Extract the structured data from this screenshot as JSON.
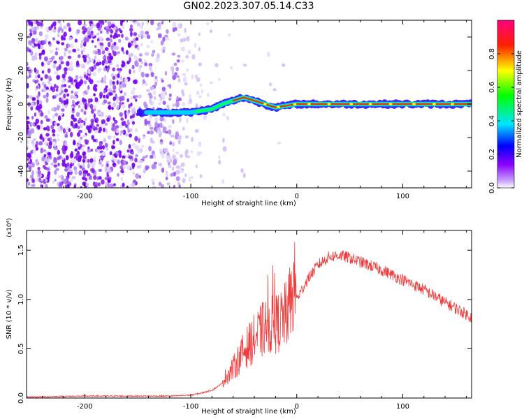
{
  "title": "GN02.2023.307.05.14.C33",
  "colorbar": {
    "label": "Normalized spectral amplitude",
    "ticks": [
      "0.0",
      "0.2",
      "0.4",
      "0.6",
      "0.8"
    ],
    "tick_values": [
      0.0,
      0.2,
      0.4,
      0.6,
      0.8
    ],
    "range": [
      0,
      1
    ],
    "colors": [
      "#ffffff",
      "#8a2be2",
      "#0000ff",
      "#00ffff",
      "#00ff00",
      "#ffff00",
      "#ff0000",
      "#ff00ff"
    ]
  },
  "chart_data": [
    {
      "type": "heatmap",
      "xlabel": "Height of straight line (km)",
      "ylabel": "Frequency (Hz)",
      "xlim": [
        -255,
        165
      ],
      "ylim": [
        -50,
        50
      ],
      "x_ticks": [
        -200,
        -100,
        0,
        100
      ],
      "x_tick_labels": [
        "-200",
        "-100",
        "0",
        "100"
      ],
      "y_ticks": [
        -40,
        -20,
        0,
        20,
        40
      ],
      "y_tick_labels": [
        "-40",
        "-20",
        "0",
        "20",
        "40"
      ],
      "ridge": {
        "x": [
          -145,
          -120,
          -100,
          -80,
          -70,
          -60,
          -50,
          -45,
          -40,
          -30,
          -20,
          -10,
          0,
          50,
          100,
          165
        ],
        "y": [
          -5,
          -5,
          -5,
          -3,
          0,
          2,
          4,
          3,
          2,
          0,
          -2,
          -1,
          0,
          0,
          0,
          0
        ]
      }
    },
    {
      "type": "line",
      "xlabel": "Height of straight line (km)",
      "ylabel": "SNR (10 * v/v)",
      "y_multiplier": "(x10⁴)",
      "xlim": [
        -255,
        165
      ],
      "ylim": [
        0,
        1.7
      ],
      "x_ticks": [
        -200,
        -100,
        0,
        100
      ],
      "x_tick_labels": [
        "-200",
        "-100",
        "0",
        "100"
      ],
      "y_ticks": [
        0.0,
        0.5,
        1.0,
        1.5
      ],
      "y_tick_labels": [
        "0.0",
        "0.5",
        "1.0",
        "1.5"
      ],
      "series": [
        {
          "color": "#ef3b3b",
          "x": [
            -255,
            -200,
            -150,
            -120,
            -100,
            -90,
            -80,
            -70,
            -60,
            -50,
            -40,
            -30,
            -20,
            -10,
            0,
            10,
            20,
            30,
            40,
            50,
            60,
            80,
            100,
            120,
            140,
            165
          ],
          "values": [
            0.01,
            0.02,
            0.02,
            0.02,
            0.03,
            0.05,
            0.08,
            0.15,
            0.25,
            0.4,
            0.5,
            0.6,
            0.62,
            0.7,
            1.0,
            1.2,
            1.35,
            1.43,
            1.45,
            1.42,
            1.38,
            1.3,
            1.2,
            1.1,
            0.97,
            0.82
          ]
        }
      ]
    }
  ]
}
